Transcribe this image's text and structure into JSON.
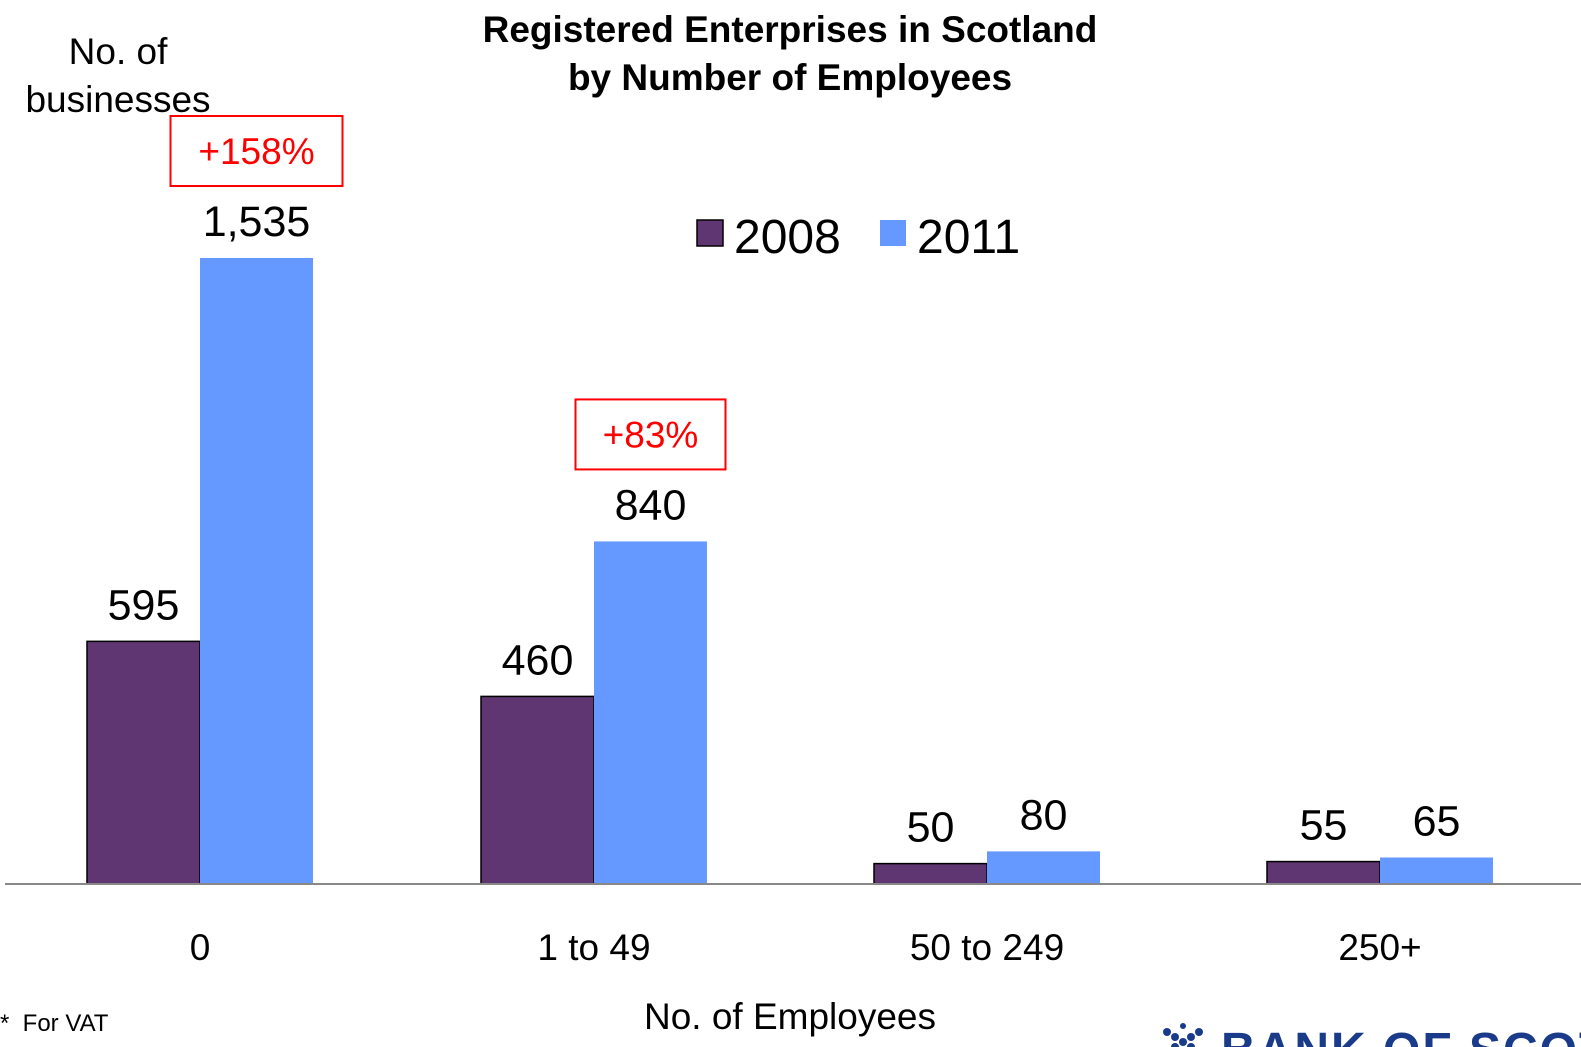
{
  "chart_data": {
    "type": "bar",
    "title_lines": [
      "Registered Enterprises in Scotland",
      "by Number of Employees"
    ],
    "ylabel_lines": [
      "No. of",
      "businesses"
    ],
    "xlabel": "No. of Employees",
    "categories": [
      "0",
      "1 to 49",
      "50 to 249",
      "250+"
    ],
    "series": [
      {
        "name": "2008",
        "color": "#5f3672",
        "values": [
          595,
          460,
          50,
          55
        ],
        "labels": [
          "595",
          "460",
          "50",
          "55"
        ]
      },
      {
        "name": "2011",
        "color": "#6699ff",
        "values": [
          1535,
          840,
          80,
          65
        ],
        "labels": [
          "1,535",
          "840",
          "80",
          "65"
        ]
      }
    ],
    "annotations": [
      {
        "category": "0",
        "text": "+158%",
        "color": "#ff0000"
      },
      {
        "category": "1 to 49",
        "text": "+83%",
        "color": "#ff0000"
      }
    ],
    "ylim": [
      0,
      1540
    ],
    "legend_position": "top-center",
    "grid": false
  },
  "footnote": "*  For VAT",
  "logo": {
    "text": "BANK OF SCOTLAND",
    "icon": "saltire-dots-icon",
    "color": "#1a3a8a"
  }
}
